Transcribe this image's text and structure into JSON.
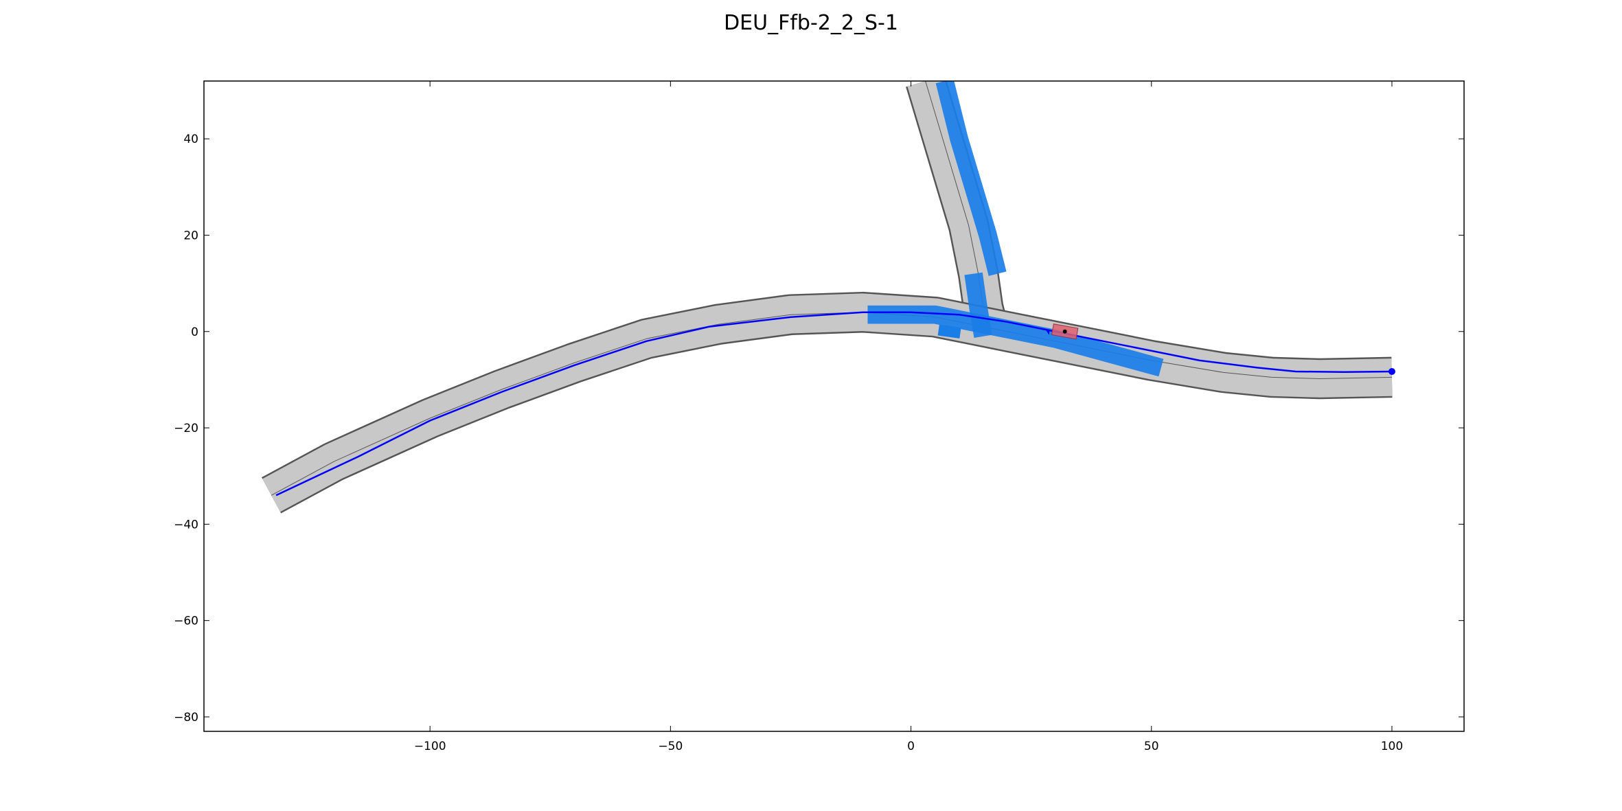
{
  "chart_data": {
    "type": "line",
    "title": "DEU_Ffb-2_2_S-1",
    "xlabel": "",
    "ylabel": "",
    "xlim": [
      -147,
      115
    ],
    "ylim": [
      -83,
      52
    ],
    "grid": false,
    "x_ticks": [
      -100,
      -50,
      0,
      50,
      100
    ],
    "y_ticks": [
      40,
      20,
      0,
      -20,
      -40,
      -60,
      -80
    ],
    "x_tick_labels": [
      "−100",
      "−50",
      "0",
      "50",
      "100"
    ],
    "y_tick_labels": [
      "40",
      "20",
      "0",
      "−20",
      "−40",
      "−60",
      "−80"
    ],
    "colors": {
      "road": "#c8c8c8",
      "road_edge": "#555555",
      "highlight": "#1a7ee8",
      "route": "#0000ff",
      "ego_vehicle": "#e06070"
    },
    "road_main": {
      "x": [
        -133,
        -120,
        -100,
        -85,
        -70,
        -55,
        -40,
        -25,
        -10,
        5,
        20,
        35,
        50,
        65,
        75,
        85,
        100
      ],
      "y": [
        -34,
        -27,
        -18,
        -12,
        -6.5,
        -1.5,
        1.5,
        3.5,
        4,
        3,
        0,
        -3,
        -6,
        -8.5,
        -9.5,
        -9.8,
        -9.5
      ]
    },
    "road_branch": {
      "x": [
        3,
        6,
        9,
        12,
        14,
        15,
        16
      ],
      "y": [
        52,
        42,
        32,
        22,
        12,
        5,
        1
      ]
    },
    "series": [
      {
        "x": [
          -132,
          -115,
          -100,
          -85,
          -70,
          -55,
          -42,
          -25,
          -10,
          0,
          10,
          20,
          30,
          45,
          60,
          72,
          80,
          90,
          100
        ],
        "y": [
          -34,
          -26,
          -18.5,
          -12.5,
          -7,
          -2,
          1,
          3,
          4,
          4,
          3.5,
          2,
          0,
          -3,
          -6,
          -7.5,
          -8.3,
          -8.4,
          -8.3
        ]
      }
    ],
    "highlight_segments": [
      {
        "x": [
          -9,
          5,
          15,
          30,
          52
        ],
        "y": [
          3.5,
          3.5,
          1.5,
          -1.5,
          -7.5
        ]
      },
      {
        "x": [
          7,
          10,
          13,
          16,
          18
        ],
        "y": [
          52,
          40,
          30,
          20,
          12
        ]
      },
      {
        "x": [
          13,
          14,
          15
        ],
        "y": [
          12,
          5,
          -1
        ]
      }
    ],
    "ego_vehicle": {
      "x": 32,
      "y": 0,
      "heading_deg": -10
    },
    "other_vehicles": [
      {
        "x": 8,
        "y": 0
      }
    ]
  }
}
